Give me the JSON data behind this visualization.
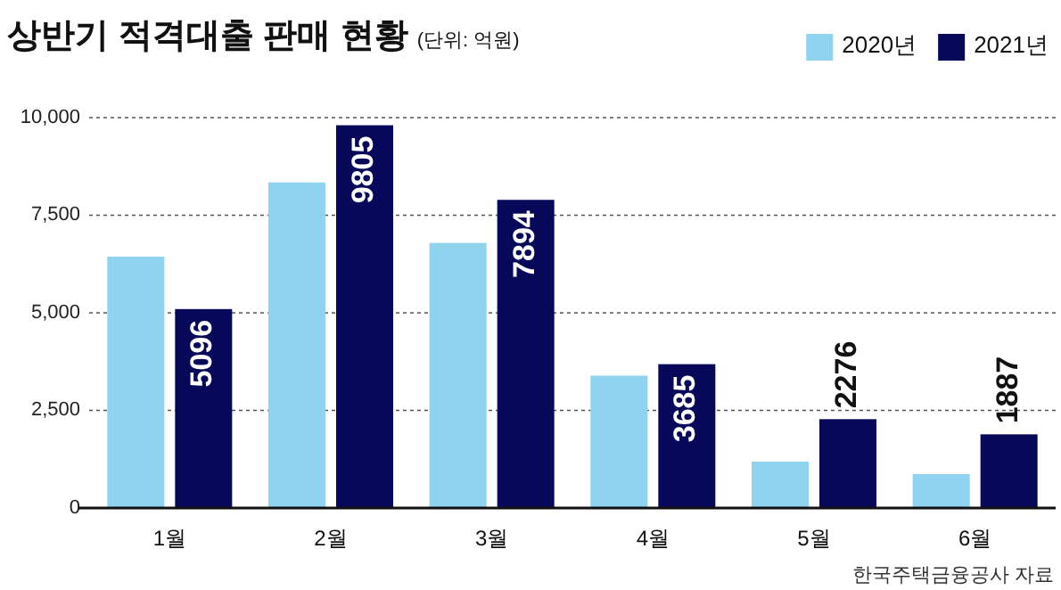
{
  "chart_data": {
    "type": "bar",
    "title": "상반기 적격대출 판매 현황",
    "subtitle": "(단위: 억원)",
    "categories": [
      "1월",
      "2월",
      "3월",
      "4월",
      "5월",
      "6월"
    ],
    "series": [
      {
        "name": "2020년",
        "color": "#8fd3ee",
        "values": [
          6440,
          8340,
          6790,
          3390,
          1190,
          870
        ]
      },
      {
        "name": "2021년",
        "color": "#08085a",
        "values": [
          5096,
          9805,
          7894,
          3685,
          2276,
          1887
        ],
        "value_labels": [
          "5096",
          "9805",
          "7894",
          "3685",
          "2276",
          "1887"
        ]
      }
    ],
    "ylim": [
      0,
      10000
    ],
    "yticks": [
      0,
      {
        "value": 2500,
        "label": "2,500"
      },
      {
        "value": 5000,
        "label": "5,000"
      },
      {
        "value": 7500,
        "label": "7,500"
      },
      {
        "value": 10000,
        "label": "10,000"
      }
    ],
    "grid": "y",
    "legend": "top right",
    "annotations": [
      "한국주택금융공사 자료"
    ]
  }
}
